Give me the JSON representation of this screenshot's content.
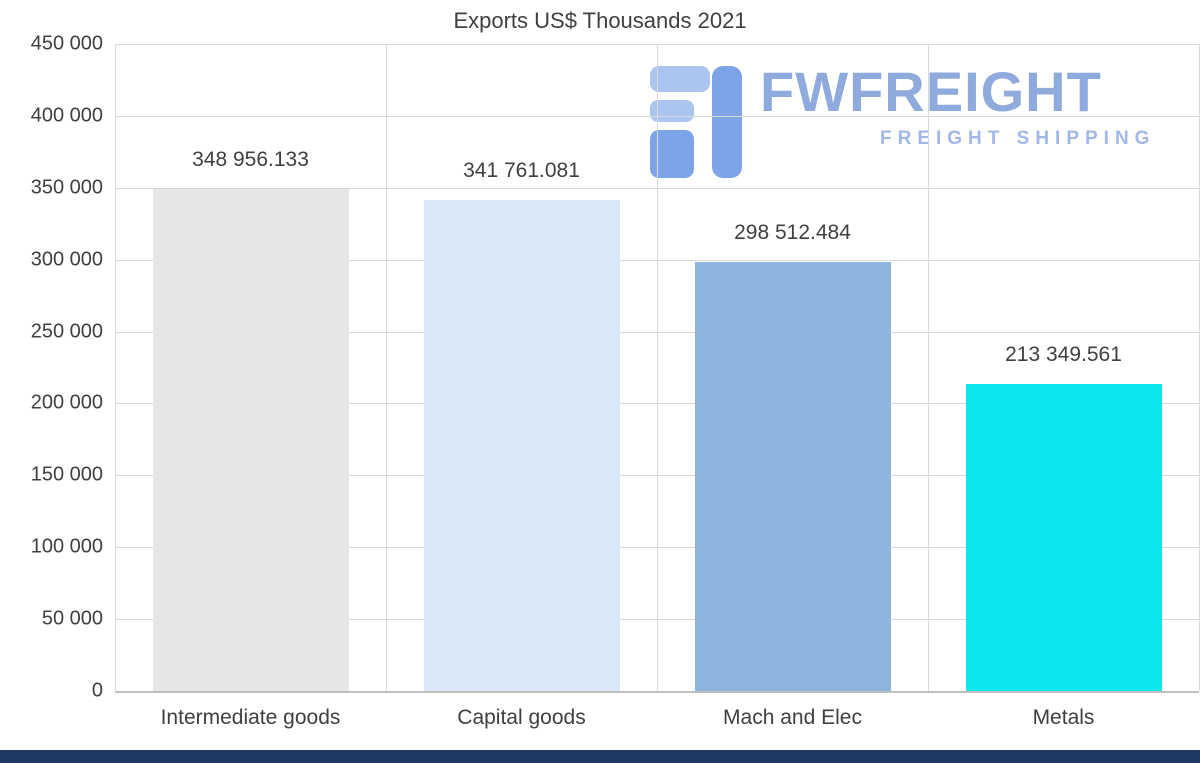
{
  "chart_data": {
    "type": "bar",
    "title": "Exports US$ Thousands 2021",
    "categories": [
      "Intermediate goods",
      "Capital goods",
      "Mach and Elec",
      "Metals"
    ],
    "values": [
      348956.133,
      341761.081,
      298512.484,
      213349.561
    ],
    "value_labels": [
      "348 956.133",
      "341 761.081",
      "298 512.484",
      "213 349.561"
    ],
    "bar_colors": [
      "#e7e6e6",
      "#d9e7f8",
      "#8cb4dd",
      "#0ce6ef"
    ],
    "xlabel": "",
    "ylabel": "",
    "ylim": [
      0,
      450000
    ],
    "ytick_step": 50000,
    "ytick_labels": [
      "0",
      "50 000",
      "100 000",
      "150 000",
      "200 000",
      "250 000",
      "300 000",
      "350 000",
      "400 000",
      "450 000"
    ],
    "grid": true,
    "legend": false
  },
  "logo": {
    "wordmark": "FWFREIGHT",
    "tagline": "FREIGHT SHIPPING"
  },
  "colors": {
    "grid": "#d9d9d9",
    "axis": "#bfbfbf",
    "text": "#404040",
    "logo_primary": "#8faadc",
    "logo_light": "#aac5f0",
    "logo_medium": "#7da4e6",
    "bottom_strip": "#1f3864"
  }
}
